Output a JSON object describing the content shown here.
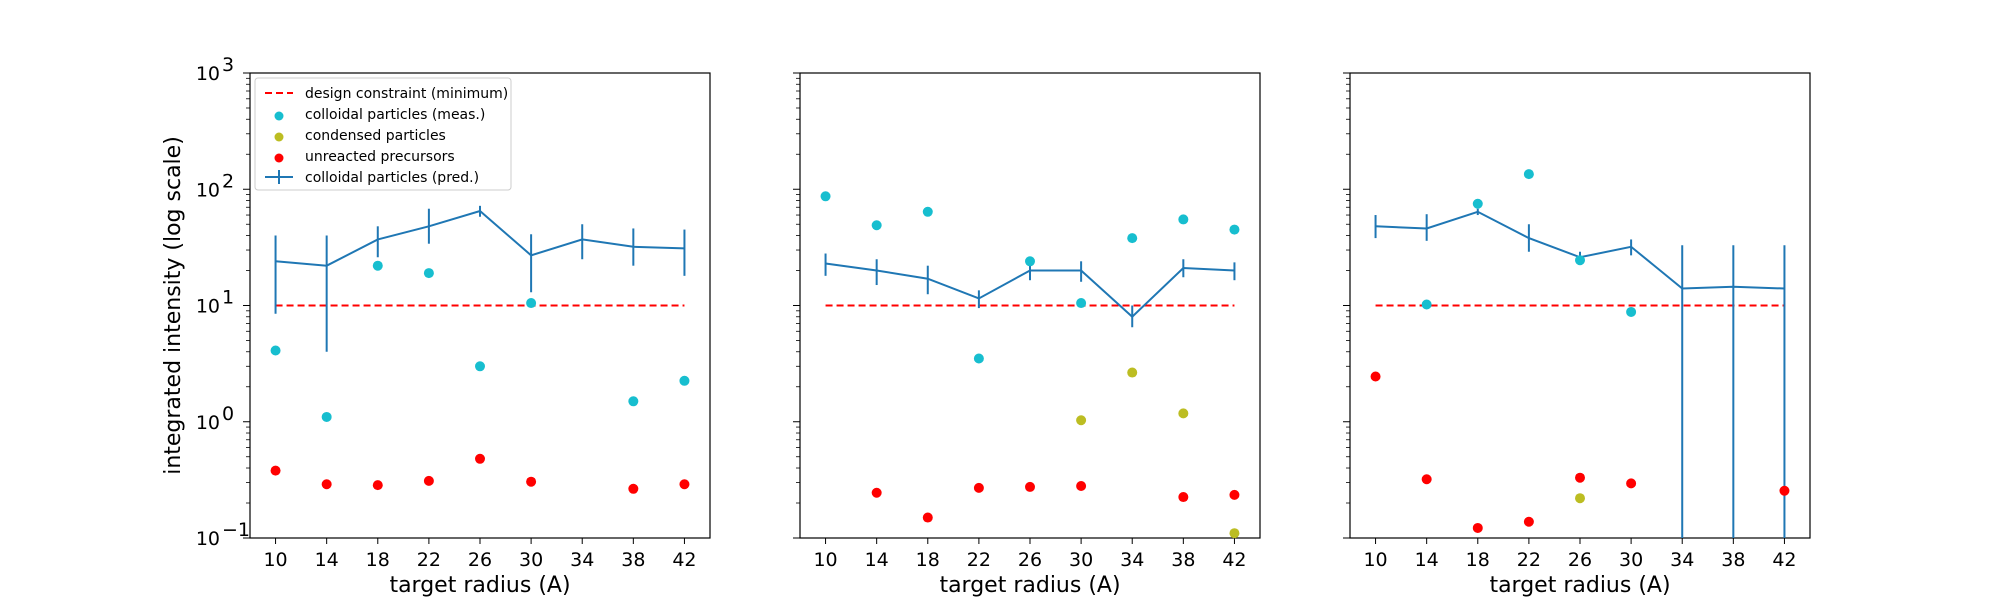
{
  "colors": {
    "constraint": "#ff0000",
    "colloidal_meas": "#17becf",
    "condensed": "#bcbd22",
    "unreacted": "#ff0000",
    "colloidal_pred": "#1f77b4"
  },
  "chart_data": [
    {
      "type": "scatter",
      "xlabel": "target radius (A)",
      "ylabel": "integrated intensity (log scale)",
      "yscale": "log",
      "ylim": [
        0.1,
        1000
      ],
      "xticks": [
        10,
        14,
        18,
        22,
        26,
        30,
        34,
        38,
        42
      ],
      "yticks": [
        "10",
        "10",
        "10",
        "10",
        "10"
      ],
      "ytick_exponents": [
        "−1",
        "0",
        "1",
        "2",
        "3"
      ],
      "legend": {
        "position": "upper-left",
        "entries": [
          {
            "label": "design constraint (minimum)"
          },
          {
            "label": "colloidal particles (meas.)"
          },
          {
            "label": "condensed particles"
          },
          {
            "label": "unreacted precursors"
          },
          {
            "label": "colloidal particles (pred.)"
          }
        ]
      },
      "constraint": {
        "x": [
          10,
          42
        ],
        "y": 10
      },
      "colloidal_meas": {
        "x": [
          10,
          14,
          18,
          22,
          26,
          30,
          38,
          42
        ],
        "y": [
          4.1,
          1.1,
          22,
          19,
          3.0,
          10.5,
          1.5,
          2.25
        ]
      },
      "condensed": {
        "x": [],
        "y": []
      },
      "unreacted": {
        "x": [
          10,
          14,
          18,
          22,
          26,
          30,
          38,
          42
        ],
        "y": [
          0.38,
          0.29,
          0.285,
          0.31,
          0.48,
          0.305,
          0.265,
          0.29
        ]
      },
      "colloidal_pred": {
        "x": [
          10,
          14,
          18,
          22,
          26,
          30,
          34,
          38,
          42
        ],
        "y": [
          24,
          22,
          37,
          48,
          65,
          27,
          37,
          32,
          31
        ],
        "err_low": [
          8.5,
          4,
          26,
          34,
          58,
          13,
          25,
          22,
          18
        ],
        "err_high": [
          40,
          40,
          48,
          68,
          72,
          41,
          50,
          46,
          45
        ]
      }
    },
    {
      "type": "scatter",
      "xlabel": "target radius (A)",
      "ylabel": "",
      "yscale": "log",
      "ylim": [
        0.1,
        1000
      ],
      "xticks": [
        10,
        14,
        18,
        22,
        26,
        30,
        34,
        38,
        42
      ],
      "constraint": {
        "x": [
          10,
          42
        ],
        "y": 10
      },
      "colloidal_meas": {
        "x": [
          10,
          14,
          18,
          22,
          26,
          30,
          34,
          38,
          42
        ],
        "y": [
          87,
          49,
          64,
          3.5,
          24,
          10.5,
          38,
          55,
          45
        ]
      },
      "condensed": {
        "x": [
          30,
          34,
          38,
          42
        ],
        "y": [
          1.03,
          2.65,
          1.18,
          0.11
        ]
      },
      "unreacted": {
        "x": [
          14,
          18,
          22,
          26,
          30,
          38,
          42
        ],
        "y": [
          0.245,
          0.15,
          0.27,
          0.275,
          0.28,
          0.225,
          0.235
        ]
      },
      "colloidal_pred": {
        "x": [
          10,
          14,
          18,
          22,
          26,
          30,
          34,
          38,
          42
        ],
        "y": [
          23,
          20,
          17,
          11.5,
          20,
          20,
          8,
          21,
          20
        ],
        "err_low": [
          18,
          15,
          12.5,
          9.5,
          16.5,
          16,
          6.5,
          17.5,
          16.5
        ],
        "err_high": [
          28,
          25,
          22,
          13.5,
          24,
          24,
          10,
          25,
          23.5
        ]
      }
    },
    {
      "type": "scatter",
      "xlabel": "target radius (A)",
      "ylabel": "",
      "yscale": "log",
      "ylim": [
        0.1,
        1000
      ],
      "xticks": [
        10,
        14,
        18,
        22,
        26,
        30,
        34,
        38,
        42
      ],
      "constraint": {
        "x": [
          10,
          42
        ],
        "y": 10
      },
      "colloidal_meas": {
        "x": [
          14,
          18,
          22,
          26,
          30
        ],
        "y": [
          10.2,
          75,
          135,
          24.5,
          8.8
        ]
      },
      "condensed": {
        "x": [
          26
        ],
        "y": [
          0.22
        ]
      },
      "unreacted": {
        "x": [
          10,
          14,
          18,
          22,
          26,
          30,
          42
        ],
        "y": [
          2.45,
          0.32,
          0.122,
          0.138,
          0.33,
          0.295,
          0.255
        ]
      },
      "colloidal_pred": {
        "x": [
          10,
          14,
          18,
          22,
          26,
          30,
          34,
          38,
          42
        ],
        "y": [
          48,
          46,
          64,
          38,
          26,
          32,
          14,
          14.5,
          14
        ],
        "err_low": [
          38,
          36,
          60,
          29,
          23,
          27,
          0.1,
          0.1,
          0.1
        ],
        "err_high": [
          60,
          61,
          68,
          50,
          29,
          37,
          33,
          33,
          33
        ]
      }
    }
  ]
}
